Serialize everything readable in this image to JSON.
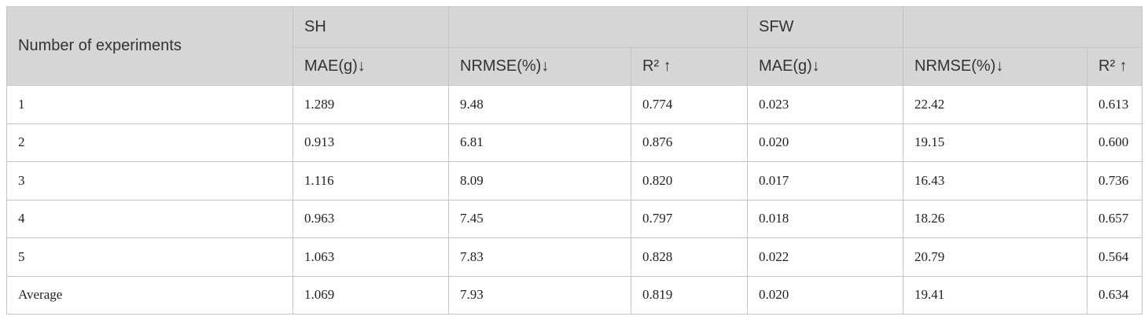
{
  "table": {
    "header": {
      "label": "Number of experiments",
      "groups": [
        "SH",
        "SFW"
      ],
      "columns": [
        "MAE(g)↓",
        "NRMSE(%)↓",
        "R² ↑",
        "MAE(g)↓",
        "NRMSE(%)↓",
        "R² ↑"
      ]
    },
    "rows": [
      [
        "1",
        "1.289",
        "9.48",
        "0.774",
        "0.023",
        "22.42",
        "0.613"
      ],
      [
        "2",
        "0.913",
        "6.81",
        "0.876",
        "0.020",
        "19.15",
        "0.600"
      ],
      [
        "3",
        "1.116",
        "8.09",
        "0.820",
        "0.017",
        "16.43",
        "0.736"
      ],
      [
        "4",
        "0.963",
        "7.45",
        "0.797",
        "0.018",
        "18.26",
        "0.657"
      ],
      [
        "5",
        "1.063",
        "7.83",
        "0.828",
        "0.022",
        "20.79",
        "0.564"
      ],
      [
        "Average",
        "1.069",
        "7.93",
        "0.819",
        "0.020",
        "19.41",
        "0.634"
      ]
    ]
  }
}
